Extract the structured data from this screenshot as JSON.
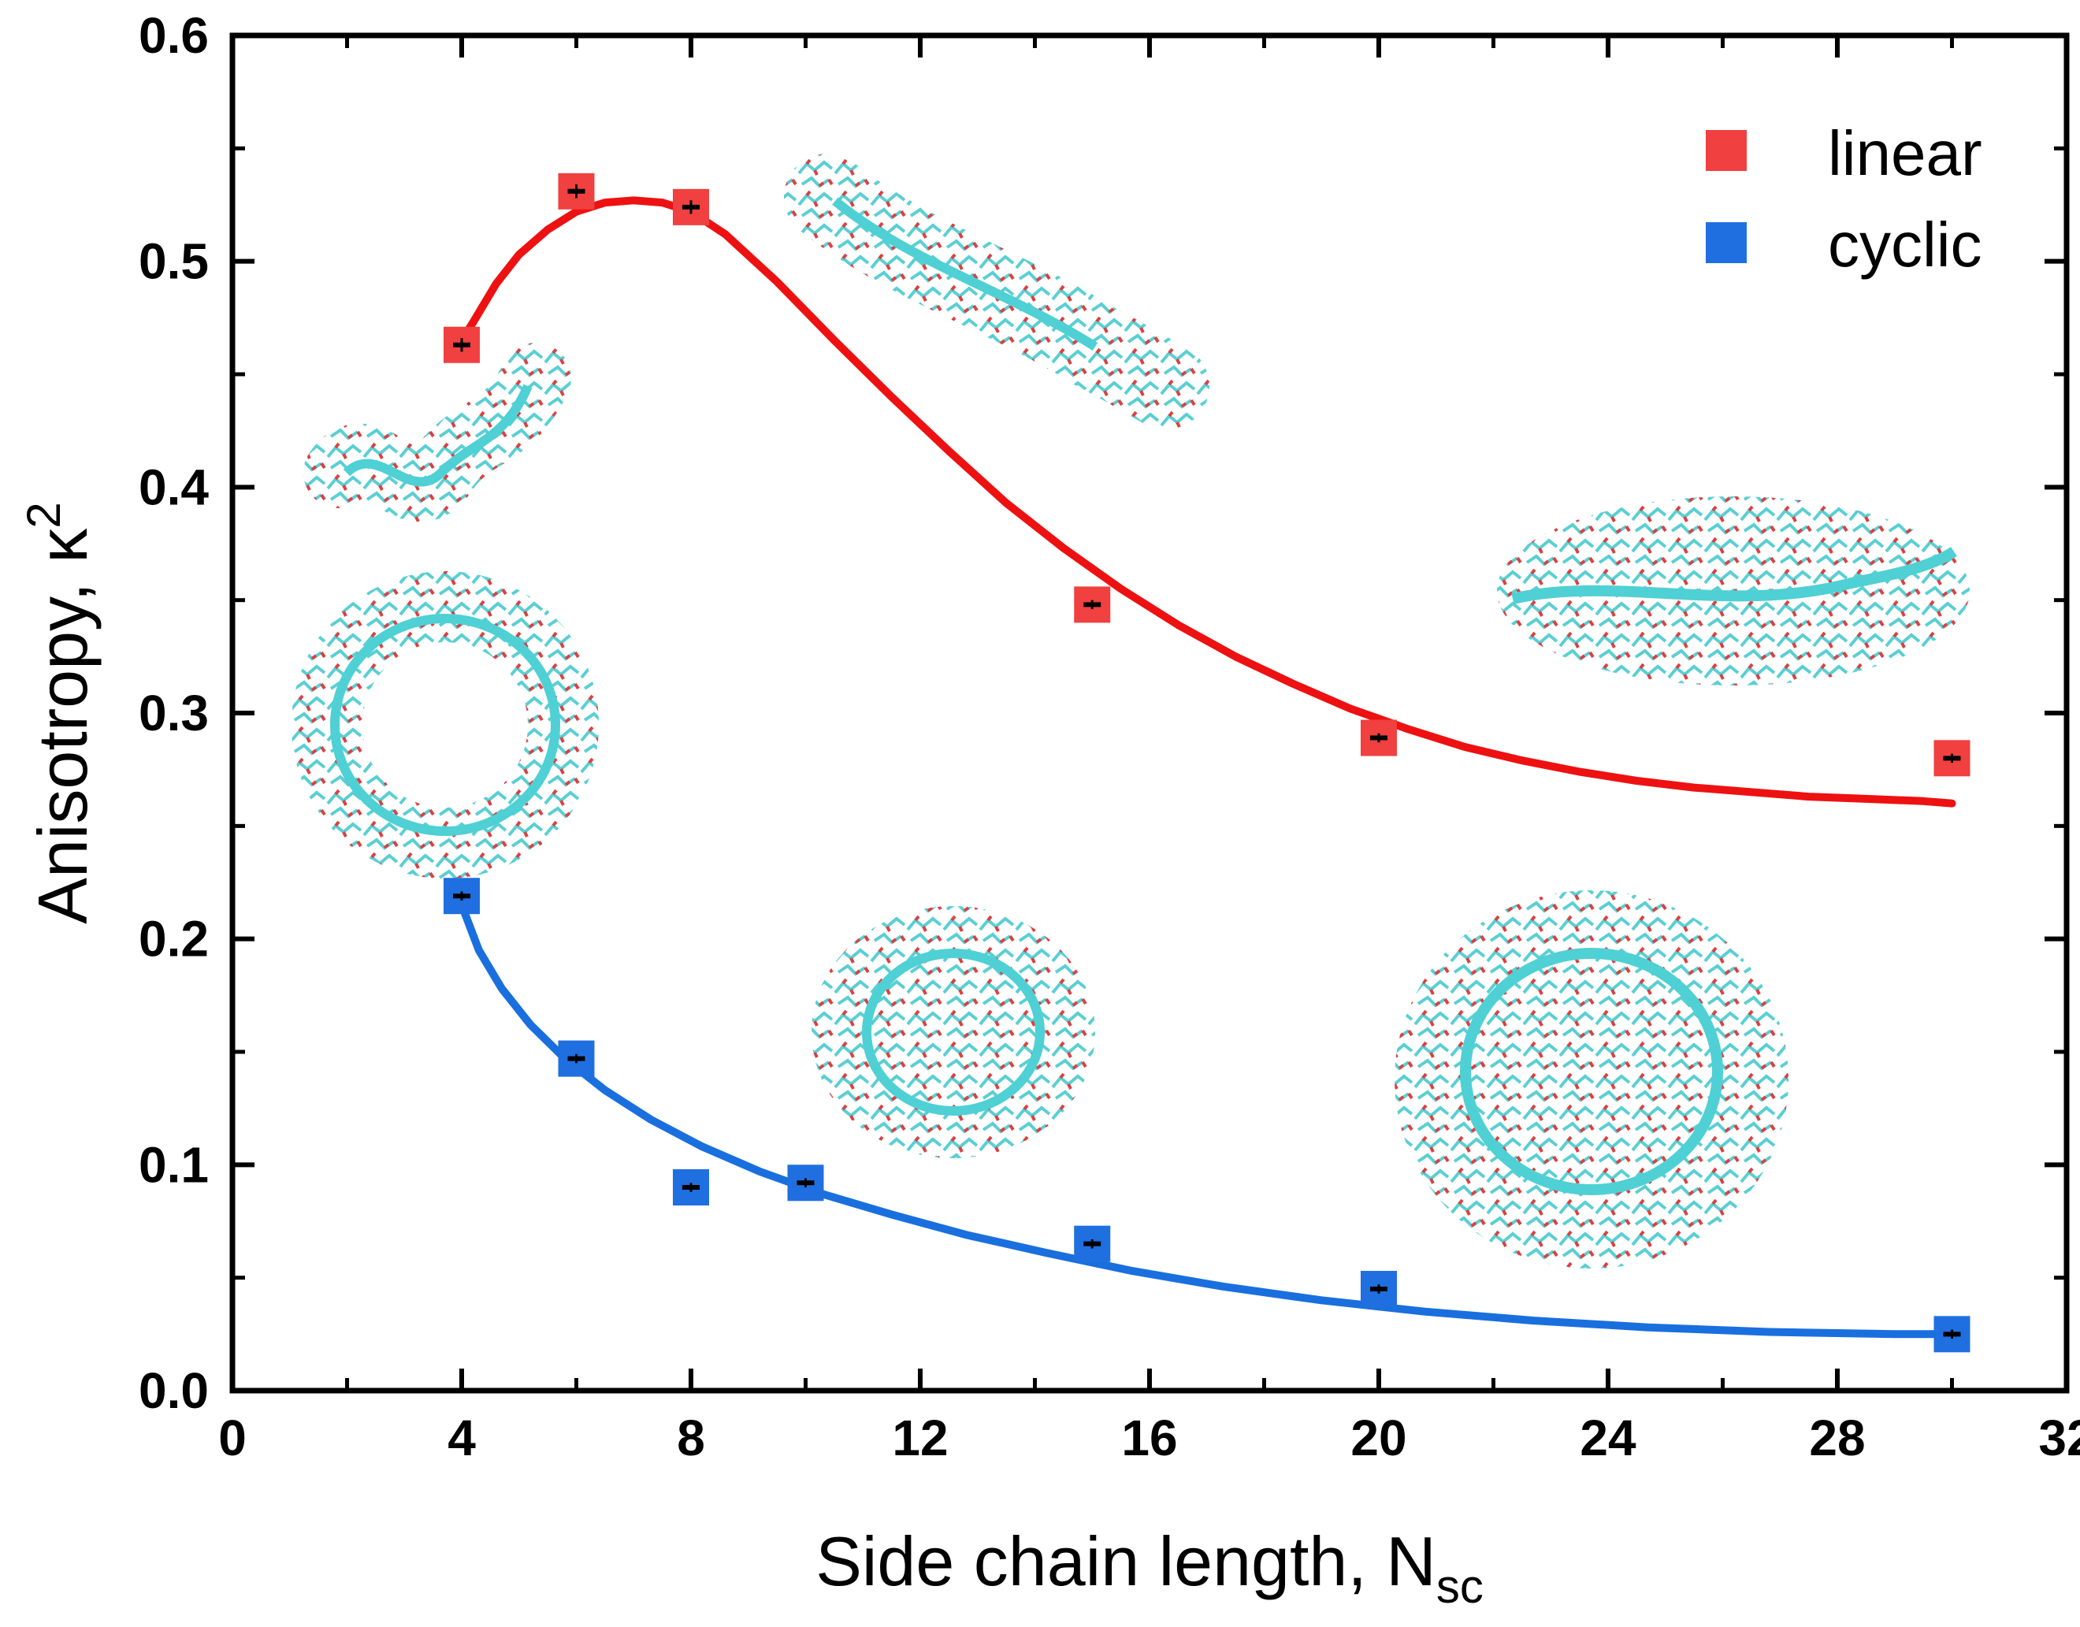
{
  "chart_data": {
    "type": "scatter",
    "title": "",
    "xlabel": "Side chain length, N",
    "xlabel_sub": "sc",
    "ylabel": "Anisotropy, κ",
    "ylabel_sup": "2",
    "xlim": [
      0,
      32
    ],
    "ylim": [
      0.0,
      0.6
    ],
    "x_ticks": [
      0,
      4,
      8,
      12,
      16,
      20,
      24,
      28,
      32
    ],
    "y_ticks": [
      0.0,
      0.1,
      0.2,
      0.3,
      0.4,
      0.5,
      0.6
    ],
    "x_tick_labels": [
      "0",
      "4",
      "8",
      "12",
      "16",
      "20",
      "24",
      "28",
      "32"
    ],
    "y_tick_labels": [
      "0.0",
      "0.1",
      "0.2",
      "0.3",
      "0.4",
      "0.5",
      "0.6"
    ],
    "grid": false,
    "legend_position": "top-right",
    "series": [
      {
        "name": "linear",
        "color": "#f04040",
        "x": [
          4,
          6,
          8,
          15,
          20,
          30
        ],
        "y": [
          0.463,
          0.531,
          0.524,
          0.348,
          0.289,
          0.28
        ],
        "err": [
          0.003,
          0.003,
          0.003,
          0.002,
          0.002,
          0.002
        ],
        "fit_color": "#ee1111",
        "fit_x": [
          4.0,
          4.2,
          4.6,
          5.0,
          5.5,
          6.0,
          6.5,
          7.0,
          7.5,
          8.0,
          8.6,
          9.5,
          10.5,
          11.5,
          12.5,
          13.5,
          14.5,
          15.5,
          16.5,
          17.5,
          18.5,
          19.5,
          20.5,
          21.5,
          22.5,
          23.5,
          24.5,
          25.5,
          26.5,
          27.5,
          28.5,
          29.5,
          30.0
        ],
        "fit_y": [
          0.465,
          0.473,
          0.49,
          0.503,
          0.514,
          0.522,
          0.526,
          0.527,
          0.526,
          0.522,
          0.512,
          0.491,
          0.465,
          0.44,
          0.416,
          0.393,
          0.373,
          0.355,
          0.339,
          0.325,
          0.313,
          0.302,
          0.293,
          0.285,
          0.279,
          0.274,
          0.27,
          0.267,
          0.265,
          0.263,
          0.262,
          0.261,
          0.26
        ]
      },
      {
        "name": "cyclic",
        "color": "#1f6fe0",
        "x": [
          4,
          6,
          8,
          10,
          15,
          20,
          30
        ],
        "y": [
          0.219,
          0.147,
          0.09,
          0.092,
          0.065,
          0.045,
          0.025
        ],
        "err": [
          0.002,
          0.002,
          0.002,
          0.002,
          0.002,
          0.002,
          0.002
        ],
        "fit_color": "#1a6fde",
        "fit_x": [
          4.0,
          4.3,
          4.7,
          5.2,
          5.8,
          6.5,
          7.3,
          8.2,
          9.2,
          10.3,
          11.5,
          12.8,
          14.2,
          15.7,
          17.3,
          19.0,
          20.8,
          22.7,
          24.7,
          26.8,
          29.0,
          30.0
        ],
        "fit_y": [
          0.215,
          0.195,
          0.178,
          0.162,
          0.147,
          0.133,
          0.12,
          0.108,
          0.097,
          0.087,
          0.078,
          0.069,
          0.061,
          0.053,
          0.046,
          0.04,
          0.035,
          0.031,
          0.028,
          0.026,
          0.025,
          0.025
        ]
      }
    ]
  }
}
